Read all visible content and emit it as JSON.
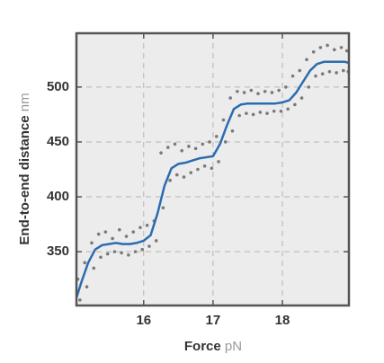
{
  "chart_data": {
    "type": "scatter",
    "xlabel": "Force",
    "xunit": "pN",
    "ylabel": "End-to-end distance",
    "yunit": "nm",
    "xlim": [
      15.03,
      18.96
    ],
    "ylim": [
      301,
      549
    ],
    "xticks": [
      16,
      17,
      18
    ],
    "yticks": [
      350,
      400,
      450,
      500
    ],
    "grid": true,
    "series": [
      {
        "type": "scatter",
        "color": "#7a7a7a",
        "x": [
          15.05,
          15.08,
          15.15,
          15.18,
          15.25,
          15.28,
          15.35,
          15.38,
          15.45,
          15.48,
          15.55,
          15.58,
          15.65,
          15.68,
          15.75,
          15.78,
          15.85,
          15.88,
          15.95,
          15.98,
          16.05,
          16.08,
          16.15,
          16.18,
          16.25,
          16.28,
          16.35,
          16.38,
          16.45,
          16.48,
          16.55,
          16.58,
          16.65,
          16.68,
          16.75,
          16.78,
          16.85,
          16.88,
          16.95,
          16.98,
          17.05,
          17.08,
          17.15,
          17.18,
          17.25,
          17.28,
          17.35,
          17.38,
          17.45,
          17.48,
          17.55,
          17.58,
          17.65,
          17.68,
          17.75,
          17.78,
          17.85,
          17.88,
          17.95,
          17.98,
          18.05,
          18.08,
          18.15,
          18.18,
          18.25,
          18.28,
          18.35,
          18.38,
          18.45,
          18.48,
          18.55,
          18.58,
          18.65,
          18.68,
          18.75,
          18.78,
          18.85,
          18.88,
          18.93,
          18.95
        ],
        "values": [
          325,
          306,
          340,
          318,
          358,
          335,
          366,
          345,
          368,
          348,
          362,
          350,
          370,
          349,
          364,
          347,
          368,
          350,
          372,
          352,
          374,
          355,
          378,
          360,
          440,
          390,
          445,
          415,
          448,
          420,
          442,
          418,
          446,
          422,
          444,
          425,
          448,
          428,
          450,
          426,
          455,
          432,
          470,
          450,
          490,
          460,
          496,
          474,
          495,
          476,
          497,
          475,
          494,
          477,
          496,
          476,
          495,
          478,
          497,
          478,
          500,
          480,
          510,
          484,
          515,
          490,
          525,
          500,
          532,
          510,
          536,
          512,
          538,
          514,
          534,
          513,
          536,
          515,
          533,
          514
        ]
      },
      {
        "type": "line",
        "color": "#2b6cb0",
        "x": [
          15.03,
          15.1,
          15.2,
          15.3,
          15.4,
          15.5,
          15.6,
          15.7,
          15.8,
          15.9,
          16.0,
          16.1,
          16.2,
          16.3,
          16.4,
          16.5,
          16.6,
          16.7,
          16.8,
          16.9,
          17.0,
          17.1,
          17.2,
          17.3,
          17.4,
          17.5,
          17.6,
          17.7,
          17.8,
          17.9,
          18.0,
          18.1,
          18.2,
          18.3,
          18.4,
          18.5,
          18.6,
          18.7,
          18.8,
          18.9,
          18.96
        ],
        "values": [
          308,
          322,
          340,
          352,
          356,
          357,
          358,
          357,
          357,
          358,
          360,
          365,
          385,
          410,
          426,
          430,
          431,
          433,
          435,
          436,
          437,
          448,
          465,
          480,
          484,
          485,
          485,
          485,
          485,
          485,
          486,
          488,
          495,
          505,
          515,
          521,
          523,
          523,
          523,
          523,
          522
        ]
      }
    ]
  }
}
